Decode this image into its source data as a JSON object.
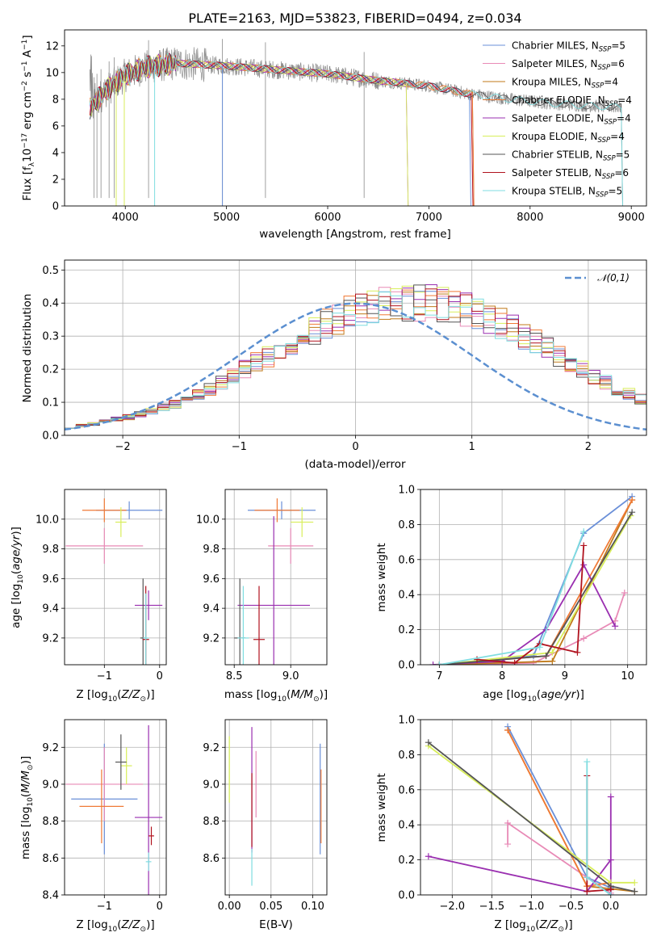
{
  "figure": {
    "title": "PLATE=2163, MJD=53823, FIBERID=0494, z=0.034"
  },
  "models": [
    {
      "name": "Chabrier MILES",
      "nssp": "5",
      "color": "#6a8fd8"
    },
    {
      "name": "Salpeter MILES",
      "nssp": "6",
      "color": "#e88ab6"
    },
    {
      "name": "Kroupa MILES",
      "nssp": "4",
      "color": "#c07a1a"
    },
    {
      "name": "Chabrier ELODIE",
      "nssp": "4",
      "color": "#f07a36"
    },
    {
      "name": "Salpeter ELODIE",
      "nssp": "4",
      "color": "#9a2fb0"
    },
    {
      "name": "Kroupa ELODIE",
      "nssp": "4",
      "color": "#d8ee5a"
    },
    {
      "name": "Chabrier STELIB",
      "nssp": "5",
      "color": "#555555"
    },
    {
      "name": "Salpeter STELIB",
      "nssp": "6",
      "color": "#b0121e"
    },
    {
      "name": "Kroupa STELIB",
      "nssp": "5",
      "color": "#7fdde0"
    }
  ],
  "chart_data": [
    {
      "id": "spectrum",
      "type": "line",
      "xlabel": "wavelength [Angstrom, rest frame]",
      "ylabel": "Flux [f_λ 10^-17 erg cm^-2 s^-1 A^-1]",
      "xlim": [
        3400,
        9150
      ],
      "ylim": [
        0,
        13.2
      ],
      "xticks": [
        4000,
        5000,
        6000,
        7000,
        8000,
        9000
      ],
      "yticks": [
        0,
        2,
        4,
        6,
        8,
        10,
        12
      ],
      "grid": false,
      "legend": "top-right",
      "data_envelope": {
        "x": [
          3650,
          3800,
          4000,
          4200,
          4500,
          5000,
          5500,
          6000,
          6500,
          7000,
          7400,
          7800,
          8200,
          8600,
          8900
        ],
        "y": [
          7.3,
          8.6,
          9.8,
          10.4,
          10.7,
          10.5,
          10.2,
          9.9,
          9.4,
          9.0,
          8.4,
          8.0,
          7.7,
          7.5,
          7.4
        ]
      },
      "model_cutoffs_x": [
        3910,
        3990,
        4960,
        6780,
        7420,
        8900
      ]
    },
    {
      "id": "residuals",
      "type": "histogram",
      "xlabel": "(data-model)/error",
      "ylabel": "Normed distribution",
      "xlim": [
        -2.5,
        2.5
      ],
      "ylim": [
        0,
        0.53
      ],
      "xticks": [
        -2,
        -1,
        0,
        1,
        2
      ],
      "yticks": [
        0.0,
        0.1,
        0.2,
        0.3,
        0.4,
        0.5
      ],
      "grid": true,
      "legend": "top-right",
      "reference": {
        "name": "𝒩(0,1)",
        "color": "#5b8fd0"
      },
      "bin_width": 0.1,
      "bins_from": -2.5,
      "bin_heights": [
        0.025,
        0.03,
        0.035,
        0.045,
        0.05,
        0.055,
        0.065,
        0.075,
        0.085,
        0.095,
        0.11,
        0.125,
        0.14,
        0.16,
        0.18,
        0.2,
        0.22,
        0.24,
        0.26,
        0.28,
        0.3,
        0.32,
        0.34,
        0.355,
        0.37,
        0.38,
        0.39,
        0.395,
        0.4,
        0.4,
        0.4,
        0.4,
        0.395,
        0.39,
        0.38,
        0.37,
        0.355,
        0.34,
        0.32,
        0.3,
        0.28,
        0.26,
        0.24,
        0.22,
        0.2,
        0.18,
        0.16,
        0.14,
        0.125,
        0.11
      ]
    },
    {
      "id": "age-metallicity",
      "type": "errorbar",
      "xlabel": "Z [log10(Z/Z☉)]",
      "ylabel": "age [log10(age/yr)]",
      "xlim": [
        -1.72,
        0.12
      ],
      "ylim": [
        9.02,
        10.2
      ],
      "xticks": [
        -1,
        0
      ],
      "yticks": [
        9.2,
        9.4,
        9.6,
        9.8,
        10.0
      ],
      "points": [
        {
          "x": -0.55,
          "xerr": 0.6,
          "y": 10.06,
          "yerr": 0.06,
          "model": 0
        },
        {
          "x": -1.0,
          "xerr": 0.7,
          "y": 9.82,
          "yerr": 0.12,
          "model": 1
        },
        {
          "x": -1.0,
          "xerr": 0.4,
          "y": 10.06,
          "yerr": 0.08,
          "model": 3
        },
        {
          "x": -0.2,
          "xerr": 0.25,
          "y": 9.42,
          "yerr": 0.1,
          "model": 4
        },
        {
          "x": -0.7,
          "xerr": 0.1,
          "y": 9.98,
          "yerr": 0.1,
          "model": 5
        },
        {
          "x": -0.3,
          "xerr": 0.05,
          "y": 9.2,
          "yerr": 0.4,
          "model": 6
        },
        {
          "x": -0.25,
          "xerr": 0.06,
          "y": 9.19,
          "yerr": 0.36,
          "model": 7
        },
        {
          "x": -0.25,
          "xerr": 0.05,
          "y": 9.2,
          "yerr": 0.3,
          "model": 8
        }
      ]
    },
    {
      "id": "age-mass",
      "type": "errorbar",
      "xlabel": "mass [log10(M/M☉)]",
      "ylabel": "",
      "xlim": [
        8.42,
        9.32
      ],
      "ylim": [
        9.02,
        10.2
      ],
      "xticks": [
        8.5,
        9.0
      ],
      "yticks": [
        9.2,
        9.4,
        9.6,
        9.8,
        10.0
      ],
      "points": [
        {
          "x": 8.92,
          "xerr": 0.3,
          "y": 10.06,
          "yerr": 0.06,
          "model": 0
        },
        {
          "x": 9.0,
          "xerr": 0.2,
          "y": 9.82,
          "yerr": 0.12,
          "model": 1
        },
        {
          "x": 8.88,
          "xerr": 0.2,
          "y": 10.06,
          "yerr": 0.08,
          "model": 3
        },
        {
          "x": 8.85,
          "xerr": 0.32,
          "y": 9.42,
          "yerr": 0.6,
          "model": 4
        },
        {
          "x": 9.1,
          "xerr": 0.1,
          "y": 9.98,
          "yerr": 0.1,
          "model": 5
        },
        {
          "x": 8.55,
          "xerr": 0.05,
          "y": 9.2,
          "yerr": 0.4,
          "model": 6
        },
        {
          "x": 8.72,
          "xerr": 0.05,
          "y": 9.19,
          "yerr": 0.36,
          "model": 7
        },
        {
          "x": 8.58,
          "xerr": 0.05,
          "y": 9.2,
          "yerr": 0.35,
          "model": 8
        }
      ]
    },
    {
      "id": "weight-age",
      "type": "line",
      "xlabel": "age [log10(age/yr)]",
      "ylabel": "mass weight",
      "xlim": [
        6.7,
        10.3
      ],
      "ylim": [
        0,
        1.0
      ],
      "xticks": [
        7,
        8,
        9,
        10
      ],
      "yticks": [
        0.0,
        0.2,
        0.4,
        0.6,
        0.8,
        1.0
      ],
      "grid": true,
      "series": [
        {
          "model": 0,
          "x": [
            7.0,
            8.5,
            9.3,
            10.07
          ],
          "y": [
            0.0,
            0.05,
            0.75,
            0.96
          ]
        },
        {
          "model": 1,
          "x": [
            7.0,
            8.5,
            9.3,
            9.8,
            9.95
          ],
          "y": [
            0.0,
            0.01,
            0.15,
            0.25,
            0.41
          ]
        },
        {
          "model": 2,
          "x": [
            7.0,
            8.8,
            10.07
          ],
          "y": [
            0.0,
            0.02,
            0.94
          ]
        },
        {
          "model": 3,
          "x": [
            7.0,
            8.7,
            10.07
          ],
          "y": [
            0.0,
            0.05,
            0.94
          ]
        },
        {
          "model": 4,
          "x": [
            6.9,
            8.0,
            8.7,
            9.3,
            9.8
          ],
          "y": [
            0.0,
            0.02,
            0.2,
            0.57,
            0.22
          ]
        },
        {
          "model": 5,
          "x": [
            7.0,
            8.8,
            10.05
          ],
          "y": [
            0.0,
            0.07,
            0.85
          ]
        },
        {
          "model": 6,
          "x": [
            7.0,
            8.7,
            10.07
          ],
          "y": [
            0.0,
            0.05,
            0.87
          ]
        },
        {
          "model": 7,
          "x": [
            7.6,
            8.2,
            8.6,
            9.2,
            9.3
          ],
          "y": [
            0.03,
            0.01,
            0.12,
            0.07,
            0.68
          ]
        },
        {
          "model": 8,
          "x": [
            7.0,
            8.6,
            9.3
          ],
          "y": [
            0.0,
            0.1,
            0.76
          ]
        }
      ]
    },
    {
      "id": "mass-metallicity",
      "type": "errorbar",
      "xlabel": "Z [log10(Z/Z☉)]",
      "ylabel": "mass [log10(M/M☉)]",
      "xlim": [
        -1.72,
        0.12
      ],
      "ylim": [
        8.4,
        9.35
      ],
      "xticks": [
        -1,
        0
      ],
      "yticks": [
        8.4,
        8.6,
        8.8,
        9.0,
        9.2
      ],
      "points": [
        {
          "x": -1.0,
          "xerr": 0.6,
          "y": 8.92,
          "yerr": 0.3,
          "model": 0
        },
        {
          "x": -1.0,
          "xerr": 0.7,
          "y": 9.0,
          "yerr": 0.2,
          "model": 1
        },
        {
          "x": -1.05,
          "xerr": 0.4,
          "y": 8.88,
          "yerr": 0.2,
          "model": 3
        },
        {
          "x": -0.2,
          "xerr": 0.25,
          "y": 8.82,
          "yerr": 0.5,
          "model": 4
        },
        {
          "x": -0.6,
          "xerr": 0.1,
          "y": 9.1,
          "yerr": 0.1,
          "model": 5
        },
        {
          "x": -0.7,
          "xerr": 0.1,
          "y": 9.12,
          "yerr": 0.15,
          "model": 6
        },
        {
          "x": -0.15,
          "xerr": 0.05,
          "y": 8.72,
          "yerr": 0.05,
          "model": 7
        },
        {
          "x": -0.2,
          "xerr": 0.05,
          "y": 8.58,
          "yerr": 0.05,
          "model": 8
        }
      ]
    },
    {
      "id": "mass-ebv",
      "type": "errorbar",
      "xlabel": "E(B-V)",
      "ylabel": "",
      "xlim": [
        -0.005,
        0.117
      ],
      "ylim": [
        8.4,
        9.35
      ],
      "xticks": [
        0.0,
        0.05,
        0.1
      ],
      "yticks": [
        8.6,
        8.8,
        9.0,
        9.2
      ],
      "points": [
        {
          "x": 0.109,
          "y": 8.92,
          "yerr": 0.3,
          "model": 0
        },
        {
          "x": 0.032,
          "y": 9.0,
          "yerr": 0.18,
          "model": 1
        },
        {
          "x": 0.11,
          "y": 8.88,
          "yerr": 0.2,
          "model": 3
        },
        {
          "x": 0.027,
          "y": 8.97,
          "yerr": 0.34,
          "model": 4
        },
        {
          "x": 0.0,
          "y": 9.08,
          "yerr": 0.18,
          "model": 5
        },
        {
          "x": 0.027,
          "y": 8.86,
          "yerr": 0.2,
          "model": 7
        },
        {
          "x": 0.027,
          "y": 8.55,
          "yerr": 0.1,
          "model": 8
        }
      ]
    },
    {
      "id": "weight-metallicity",
      "type": "line",
      "xlabel": "Z [log10(Z/Z☉)]",
      "ylabel": "mass weight",
      "xlim": [
        -2.4,
        0.45
      ],
      "ylim": [
        0,
        1.0
      ],
      "xticks": [
        -2.0,
        -1.5,
        -1.0,
        -0.5,
        0.0
      ],
      "yticks": [
        0.0,
        0.2,
        0.4,
        0.6,
        0.8,
        1.0
      ],
      "grid": true,
      "series": [
        {
          "model": 0,
          "x": [
            -1.3,
            -0.3,
            0.0
          ],
          "y": [
            0.96,
            0.1,
            0.04
          ]
        },
        {
          "model": 1,
          "x": [
            -1.3,
            -1.3,
            -0.3,
            0.0
          ],
          "y": [
            0.29,
            0.41,
            0.1,
            0.01
          ]
        },
        {
          "model": 2,
          "x": [
            -1.3,
            -0.3,
            0.3
          ],
          "y": [
            0.94,
            0.05,
            0.02
          ]
        },
        {
          "model": 3,
          "x": [
            -1.3,
            -0.3,
            0.0
          ],
          "y": [
            0.94,
            0.05,
            0.07
          ]
        },
        {
          "model": 4,
          "x": [
            -2.3,
            -0.3,
            0.0,
            0.0,
            0.0
          ],
          "y": [
            0.22,
            0.02,
            0.2,
            0.56,
            0.0
          ]
        },
        {
          "model": 5,
          "x": [
            -2.3,
            0.0,
            0.3
          ],
          "y": [
            0.85,
            0.07,
            0.07
          ]
        },
        {
          "model": 6,
          "x": [
            -2.3,
            0.0,
            0.3
          ],
          "y": [
            0.87,
            0.05,
            0.02
          ]
        },
        {
          "model": 7,
          "x": [
            -0.3,
            -0.3,
            0.0
          ],
          "y": [
            0.68,
            0.02,
            0.03
          ]
        },
        {
          "model": 8,
          "x": [
            -0.3,
            -0.3,
            0.0
          ],
          "y": [
            0.76,
            0.1,
            0.0
          ]
        }
      ]
    }
  ]
}
